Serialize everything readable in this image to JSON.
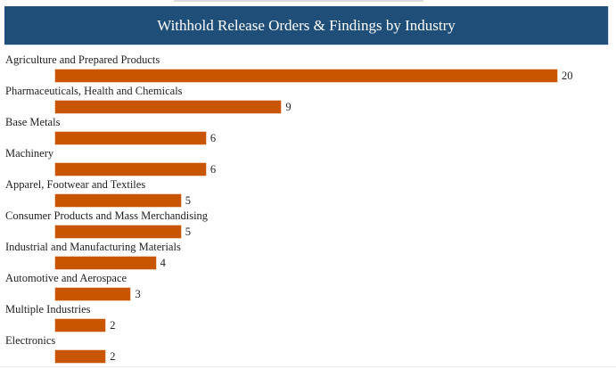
{
  "header": {
    "title": "Withhold Release Orders & Findings by Industry"
  },
  "colors": {
    "header_bg": "#1f4e79",
    "bar": "#c95500"
  },
  "chart_data": {
    "type": "bar",
    "orientation": "horizontal",
    "title": "Withhold Release Orders & Findings by Industry",
    "xlabel": "",
    "ylabel": "",
    "categories": [
      "Agriculture and Prepared Products",
      "Pharmaceuticals, Health and Chemicals",
      "Base Metals",
      "Machinery",
      "Apparel, Footwear and Textiles",
      "Consumer Products and Mass Merchandising",
      "Industrial and Manufacturing Materials",
      "Automotive and Aerospace",
      "Multiple Industries",
      "Electronics"
    ],
    "values": [
      20,
      9,
      6,
      6,
      5,
      5,
      4,
      3,
      2,
      2
    ],
    "grid": false,
    "data_labels": true,
    "legend": null
  }
}
